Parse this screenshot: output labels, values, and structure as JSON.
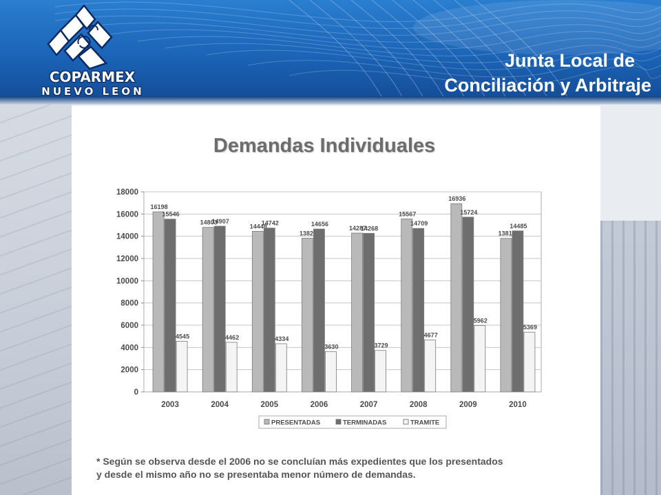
{
  "header": {
    "title_line1": "Junta Local de",
    "title_line2": "Conciliación y Arbitraje",
    "logo": {
      "icon": "coparmex-logo-icon",
      "word1": "COPARMEX",
      "word2": "NUEVO LEON"
    }
  },
  "colors": {
    "header_blue": "#1b63b6",
    "presentadas": "#b9b9b9",
    "terminadas": "#6e6e6e",
    "tramite": "#f4f4f4"
  },
  "chart_data": {
    "type": "bar",
    "title": "Demandas Individuales",
    "categories": [
      "2003",
      "2004",
      "2005",
      "2006",
      "2007",
      "2008",
      "2009",
      "2010"
    ],
    "series": [
      {
        "name": "PRESENTADAS",
        "values": [
          16198,
          14803,
          14448,
          13829,
          14287,
          15567,
          16936,
          13811
        ]
      },
      {
        "name": "TERMINADAS",
        "values": [
          15546,
          14907,
          14742,
          14656,
          14268,
          14709,
          15724,
          14485
        ]
      },
      {
        "name": "TRAMITE",
        "values": [
          4545,
          4462,
          4334,
          3630,
          3729,
          4677,
          5962,
          5369
        ]
      }
    ],
    "ylim": [
      0,
      18000
    ],
    "yticks": [
      "0",
      "2000",
      "4000",
      "6000",
      "8000",
      "10000",
      "12000",
      "14000",
      "16000",
      "18000"
    ],
    "grid": true,
    "legend": "bottom"
  },
  "note": {
    "line1": "* Según se observa desde el 2006 no se concluían más expedientes que los presentados",
    "line2": "y desde el mismo año no se presentaba menor número de demandas."
  }
}
